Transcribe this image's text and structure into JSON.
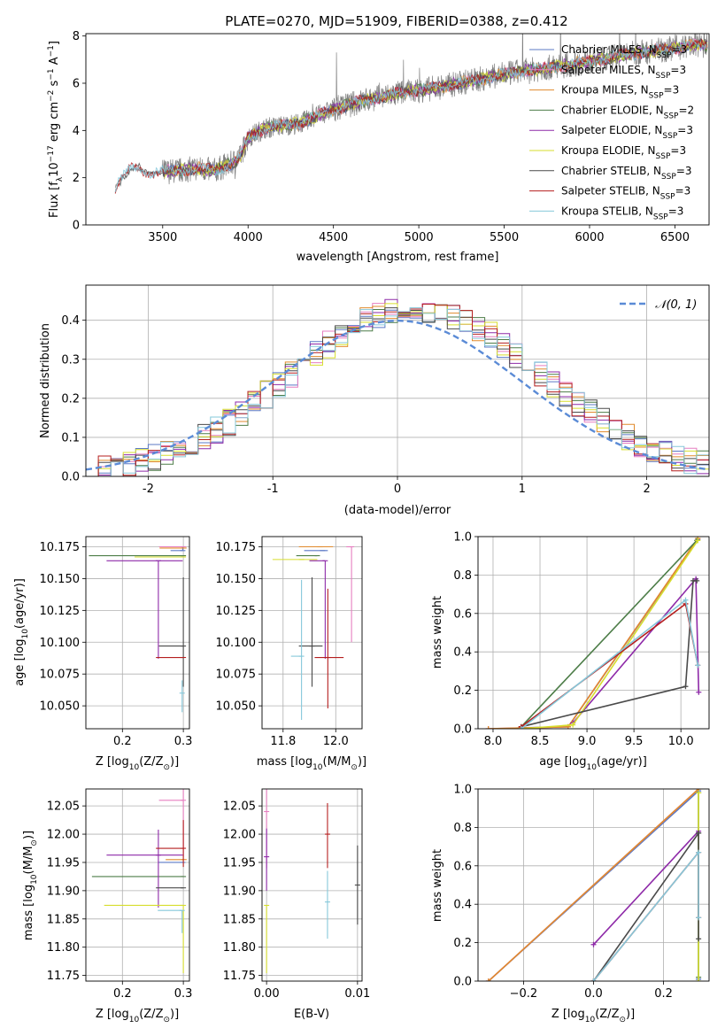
{
  "title": "PLATE=0270, MJD=51909, FIBERID=0388, z=0.412",
  "colors": {
    "Chabrier MILES": "#5b79c6",
    "Salpeter MILES": "#e67ec0",
    "Kroupa MILES": "#e08a2c",
    "Chabrier ELODIE": "#4d7d48",
    "Salpeter ELODIE": "#8e2aa8",
    "Kroupa ELODIE": "#d7de2e",
    "Chabrier STELIB": "#4a4a4a",
    "Salpeter STELIB": "#b51f1f",
    "Kroupa STELIB": "#86c8da",
    "normal": "#5b8bd6",
    "data": "#808080"
  },
  "legend_spectrum": [
    "Chabrier MILES, N_SSP=3",
    "Salpeter MILES, N_SSP=3",
    "Kroupa MILES, N_SSP=3",
    "Chabrier ELODIE, N_SSP=2",
    "Salpeter ELODIE, N_SSP=3",
    "Kroupa ELODIE, N_SSP=3",
    "Chabrier STELIB, N_SSP=3",
    "Salpeter STELIB, N_SSP=3",
    "Kroupa STELIB, N_SSP=3"
  ],
  "chart_data": [
    {
      "panel": "spectrum",
      "type": "line",
      "xlabel": "wavelength [Angstrom, rest frame]",
      "ylabel": "Flux [f_λ 10^-17 erg cm^-2 s^-1 A^-1]",
      "xlim": [
        3050,
        6700
      ],
      "ylim": [
        0,
        8.1
      ],
      "xticks": [
        3500,
        4000,
        4500,
        5000,
        5500,
        6000,
        6500
      ],
      "yticks": [
        0,
        2,
        4,
        6,
        8
      ],
      "grid": false,
      "legend": "right",
      "continuum": [
        [
          3215,
          0
        ],
        [
          3220,
          1.6
        ],
        [
          3260,
          2.0
        ],
        [
          3300,
          2.3
        ],
        [
          3340,
          2.4
        ],
        [
          3400,
          2.2
        ],
        [
          3500,
          2.25
        ],
        [
          3600,
          2.3
        ],
        [
          3700,
          2.4
        ],
        [
          3800,
          2.3
        ],
        [
          3900,
          2.6
        ],
        [
          3950,
          2.8
        ],
        [
          4000,
          3.7
        ],
        [
          4100,
          4.1
        ],
        [
          4300,
          4.3
        ],
        [
          4500,
          4.9
        ],
        [
          4700,
          5.3
        ],
        [
          4900,
          5.6
        ],
        [
          5100,
          5.8
        ],
        [
          5300,
          6.1
        ],
        [
          5600,
          6.5
        ],
        [
          5900,
          6.8
        ],
        [
          6200,
          7.2
        ],
        [
          6400,
          7.4
        ],
        [
          6600,
          7.6
        ]
      ]
    },
    {
      "panel": "residuals",
      "type": "step",
      "xlabel": "(data-model)/error",
      "ylabel": "Normed distribution",
      "xlim": [
        -2.5,
        2.5
      ],
      "ylim": [
        0,
        0.49
      ],
      "xticks": [
        -2,
        -1,
        0,
        1,
        2
      ],
      "yticks": [
        0.0,
        0.1,
        0.2,
        0.3,
        0.4
      ],
      "grid": true,
      "legend": "top-right",
      "normal_label": "𝒩(0, 1)",
      "bin_width": 0.1
    },
    {
      "panel": "age_vs_Z",
      "type": "errorbar",
      "xlabel": "Z [log10(Z/Z⊙)]",
      "ylabel": "age  [log10(age/yr)]",
      "xlim": [
        0.14,
        0.31
      ],
      "ylim": [
        10.032,
        10.183
      ],
      "xticks": [
        0.2,
        0.3
      ],
      "yticks": [
        10.05,
        10.075,
        10.1,
        10.125,
        10.15,
        10.175
      ],
      "grid": true,
      "points": [
        {
          "model": "Chabrier MILES",
          "x": 0.299,
          "y": 10.172,
          "xerr": [
            0.02,
            0.0
          ],
          "yerr": [
            0.0,
            0.003
          ]
        },
        {
          "model": "Salpeter MILES",
          "x": 0.3,
          "y": 10.175,
          "xerr": [
            0.04,
            0.0
          ],
          "yerr": [
            0.0,
            0.0
          ]
        },
        {
          "model": "Kroupa MILES",
          "x": 0.301,
          "y": 10.174,
          "xerr": [
            0.04,
            0.0
          ],
          "yerr": [
            0.0,
            0.0
          ]
        },
        {
          "model": "Chabrier ELODIE",
          "x": 0.3,
          "y": 10.168,
          "xerr": [
            0.155,
            0.0
          ],
          "yerr": [
            0.0,
            0.0
          ]
        },
        {
          "model": "Salpeter ELODIE",
          "x": 0.259,
          "y": 10.164,
          "xerr": [
            0.085,
            0.04
          ],
          "yerr": [
            0.077,
            0.0
          ]
        },
        {
          "model": "Kroupa ELODIE",
          "x": 0.3,
          "y": 10.167,
          "xerr": [
            0.08,
            0.0
          ],
          "yerr": [
            0.0,
            0.0
          ]
        },
        {
          "model": "Chabrier STELIB",
          "x": 0.3,
          "y": 10.097,
          "xerr": [
            0.04,
            0.0
          ],
          "yerr": [
            0.032,
            0.054
          ]
        },
        {
          "model": "Salpeter STELIB",
          "x": 0.3,
          "y": 10.088,
          "xerr": [
            0.045,
            0.0
          ],
          "yerr": [
            0.0,
            0.0
          ]
        },
        {
          "model": "Kroupa STELIB",
          "x": 0.298,
          "y": 10.06,
          "xerr": [
            0.0,
            0.0
          ],
          "yerr": [
            0.015,
            0.01
          ]
        }
      ]
    },
    {
      "panel": "age_vs_mass",
      "type": "errorbar",
      "xlabel": "mass [log10(M/M⊙)]",
      "ylabel": "",
      "xlim": [
        11.72,
        12.1
      ],
      "ylim": [
        10.032,
        10.183
      ],
      "xticks": [
        11.8,
        12.0
      ],
      "yticks": [
        10.05,
        10.075,
        10.1,
        10.125,
        10.15,
        10.175
      ],
      "grid": true,
      "points": [
        {
          "model": "Chabrier MILES",
          "x": 11.95,
          "y": 10.172,
          "xerr": [
            0.07,
            0.02
          ],
          "yerr": [
            0.0,
            0.0
          ]
        },
        {
          "model": "Salpeter MILES",
          "x": 12.06,
          "y": 10.175,
          "xerr": [
            0.02,
            0.0
          ],
          "yerr": [
            0.075,
            0.0
          ]
        },
        {
          "model": "Kroupa MILES",
          "x": 11.94,
          "y": 10.175,
          "xerr": [
            0.08,
            0.05
          ],
          "yerr": [
            0.0,
            0.0
          ]
        },
        {
          "model": "Chabrier ELODIE",
          "x": 11.93,
          "y": 10.168,
          "xerr": [
            0.08,
            0.0
          ],
          "yerr": [
            0.0,
            0.0
          ]
        },
        {
          "model": "Salpeter ELODIE",
          "x": 11.96,
          "y": 10.164,
          "xerr": [
            0.06,
            0.0
          ],
          "yerr": [
            0.077,
            0.0
          ]
        },
        {
          "model": "Kroupa ELODIE",
          "x": 11.87,
          "y": 10.165,
          "xerr": [
            0.11,
            0.06
          ],
          "yerr": [
            0.0,
            0.0
          ]
        },
        {
          "model": "Chabrier STELIB",
          "x": 11.91,
          "y": 10.097,
          "xerr": [
            0.05,
            0.04
          ],
          "yerr": [
            0.032,
            0.054
          ]
        },
        {
          "model": "Salpeter STELIB",
          "x": 11.97,
          "y": 10.088,
          "xerr": [
            0.05,
            0.06
          ],
          "yerr": [
            0.04,
            0.054
          ]
        },
        {
          "model": "Kroupa STELIB",
          "x": 11.87,
          "y": 10.089,
          "xerr": [
            0.04,
            0.0
          ],
          "yerr": [
            0.05,
            0.06
          ]
        }
      ]
    },
    {
      "panel": "weight_vs_age",
      "type": "line",
      "xlabel": "age  [log10(age/yr)]",
      "ylabel": "mass weight",
      "xlim": [
        7.84,
        10.3
      ],
      "ylim": [
        0,
        1.0
      ],
      "xticks": [
        8.0,
        8.5,
        9.0,
        9.5,
        10.0
      ],
      "yticks": [
        0.0,
        0.2,
        0.4,
        0.6,
        0.8,
        1.0
      ],
      "grid": true,
      "series": [
        {
          "model": "Chabrier MILES",
          "x": [
            8.3,
            8.8,
            10.18
          ],
          "y": [
            0.005,
            0.01,
            0.985
          ]
        },
        {
          "model": "Salpeter MILES",
          "x": [
            7.95,
            8.8,
            10.18
          ],
          "y": [
            0.0,
            0.01,
            0.99
          ]
        },
        {
          "model": "Kroupa MILES",
          "x": [
            7.95,
            8.8,
            10.18
          ],
          "y": [
            0.0,
            0.01,
            0.99
          ]
        },
        {
          "model": "Chabrier ELODIE",
          "x": [
            8.3,
            10.17
          ],
          "y": [
            0.01,
            0.98
          ]
        },
        {
          "model": "Salpeter ELODIE",
          "x": [
            8.85,
            10.16,
            10.19
          ],
          "y": [
            0.03,
            0.78,
            0.19
          ]
        },
        {
          "model": "Kroupa ELODIE",
          "x": [
            8.3,
            8.85,
            10.18
          ],
          "y": [
            0.0,
            0.02,
            0.98
          ]
        },
        {
          "model": "Chabrier STELIB",
          "x": [
            8.3,
            10.05,
            10.13,
            10.17
          ],
          "y": [
            0.01,
            0.22,
            0.77,
            0.77
          ]
        },
        {
          "model": "Salpeter STELIB",
          "x": [
            8.3,
            10.05,
            10.18
          ],
          "y": [
            0.01,
            0.65,
            0.33
          ]
        },
        {
          "model": "Kroupa STELIB",
          "x": [
            8.3,
            10.05,
            10.18
          ],
          "y": [
            0.0,
            0.67,
            0.33
          ]
        }
      ]
    },
    {
      "panel": "mass_vs_Z",
      "type": "errorbar",
      "xlabel": "Z [log10(Z/Z⊙)]",
      "ylabel": "mass [log10(M/M⊙)]",
      "xlim": [
        0.14,
        0.31
      ],
      "ylim": [
        11.74,
        12.08
      ],
      "xticks": [
        0.2,
        0.3
      ],
      "yticks": [
        11.75,
        11.8,
        11.85,
        11.9,
        11.95,
        12.0,
        12.05
      ],
      "grid": true,
      "points": [
        {
          "model": "Chabrier MILES",
          "x": 0.299,
          "y": 11.95,
          "xerr": [
            0.04,
            0.0
          ],
          "yerr": [
            0.0,
            0.0
          ]
        },
        {
          "model": "Salpeter MILES",
          "x": 0.3,
          "y": 12.06,
          "xerr": [
            0.04,
            0.0
          ],
          "yerr": [
            0.1,
            0.02
          ]
        },
        {
          "model": "Kroupa MILES",
          "x": 0.301,
          "y": 11.955,
          "xerr": [
            0.03,
            0.0
          ],
          "yerr": [
            0.0,
            0.0
          ]
        },
        {
          "model": "Chabrier ELODIE",
          "x": 0.3,
          "y": 11.925,
          "xerr": [
            0.15,
            0.0
          ],
          "yerr": [
            0.0,
            0.0
          ]
        },
        {
          "model": "Salpeter ELODIE",
          "x": 0.259,
          "y": 11.963,
          "xerr": [
            0.085,
            0.04
          ],
          "yerr": [
            0.093,
            0.045
          ]
        },
        {
          "model": "Kroupa ELODIE",
          "x": 0.3,
          "y": 11.874,
          "xerr": [
            0.13,
            0.0
          ],
          "yerr": [
            0.12,
            0.0
          ]
        },
        {
          "model": "Chabrier STELIB",
          "x": 0.3,
          "y": 11.905,
          "xerr": [
            0.045,
            0.0
          ],
          "yerr": [
            0.0,
            0.0
          ]
        },
        {
          "model": "Salpeter STELIB",
          "x": 0.3,
          "y": 11.975,
          "xerr": [
            0.045,
            0.0
          ],
          "yerr": [
            0.033,
            0.05
          ]
        },
        {
          "model": "Kroupa STELIB",
          "x": 0.298,
          "y": 11.865,
          "xerr": [
            0.04,
            0.0
          ],
          "yerr": [
            0.04,
            0.0
          ]
        }
      ]
    },
    {
      "panel": "mass_vs_EBV",
      "type": "errorbar",
      "xlabel": "E(B-V)",
      "ylabel": "",
      "xlim": [
        -0.0005,
        0.0105
      ],
      "ylim": [
        11.74,
        12.08
      ],
      "xticks": [
        0.0,
        0.01
      ],
      "xticklabels": [
        "0.00",
        "0.01"
      ],
      "yticks": [
        11.75,
        11.8,
        11.85,
        11.9,
        11.95,
        12.0,
        12.05
      ],
      "grid": true,
      "points": [
        {
          "model": "Salpeter MILES",
          "x": 0.0,
          "y": 12.04,
          "xerr": [
            0,
            0
          ],
          "yerr": [
            0.1,
            0.04
          ]
        },
        {
          "model": "Salpeter ELODIE",
          "x": 0.0,
          "y": 11.96,
          "xerr": [
            0,
            0
          ],
          "yerr": [
            0.06,
            0.05
          ]
        },
        {
          "model": "Kroupa ELODIE",
          "x": 0.0,
          "y": 11.874,
          "xerr": [
            0,
            0
          ],
          "yerr": [
            0.12,
            0.0
          ]
        },
        {
          "model": "Salpeter STELIB",
          "x": 0.0067,
          "y": 12.0,
          "xerr": [
            0,
            0
          ],
          "yerr": [
            0.06,
            0.055
          ]
        },
        {
          "model": "Kroupa STELIB",
          "x": 0.0067,
          "y": 11.88,
          "xerr": [
            0,
            0
          ],
          "yerr": [
            0.065,
            0.055
          ]
        },
        {
          "model": "Chabrier STELIB",
          "x": 0.01,
          "y": 11.91,
          "xerr": [
            0,
            0
          ],
          "yerr": [
            0.07,
            0.07
          ]
        }
      ]
    },
    {
      "panel": "weight_vs_Z",
      "type": "line",
      "xlabel": "Z [log10(Z/Z⊙)]",
      "ylabel": "mass weight",
      "xlim": [
        -0.33,
        0.33
      ],
      "ylim": [
        0,
        1.0
      ],
      "xticks": [
        -0.2,
        0.0,
        0.2
      ],
      "yticks": [
        0.0,
        0.2,
        0.4,
        0.6,
        0.8,
        1.0
      ],
      "grid": true,
      "series": [
        {
          "model": "Chabrier MILES",
          "x": [
            -0.3,
            0.3,
            0.3
          ],
          "y": [
            0.0,
            0.99,
            0.01
          ]
        },
        {
          "model": "Salpeter MILES",
          "x": [
            -0.3,
            0.3
          ],
          "y": [
            0.0,
            1.0
          ]
        },
        {
          "model": "Kroupa MILES",
          "x": [
            -0.3,
            0.3
          ],
          "y": [
            0.0,
            1.0
          ]
        },
        {
          "model": "Chabrier ELODIE",
          "x": [
            0.3,
            0.3
          ],
          "y": [
            0.02,
            0.98
          ]
        },
        {
          "model": "Salpeter ELODIE",
          "x": [
            0.0,
            0.3
          ],
          "y": [
            0.19,
            0.78
          ]
        },
        {
          "model": "Kroupa ELODIE",
          "x": [
            0.3,
            0.3
          ],
          "y": [
            0.0,
            0.98
          ]
        },
        {
          "model": "Chabrier STELIB",
          "x": [
            0.0,
            0.3,
            0.3,
            0.3
          ],
          "y": [
            0.0,
            0.77,
            0.77,
            0.22
          ]
        },
        {
          "model": "Salpeter STELIB",
          "x": [
            0.0,
            0.3,
            0.3
          ],
          "y": [
            0.0,
            0.67,
            0.33
          ]
        },
        {
          "model": "Kroupa STELIB",
          "x": [
            0.0,
            0.3,
            0.3
          ],
          "y": [
            0.0,
            0.67,
            0.33
          ]
        }
      ]
    }
  ]
}
